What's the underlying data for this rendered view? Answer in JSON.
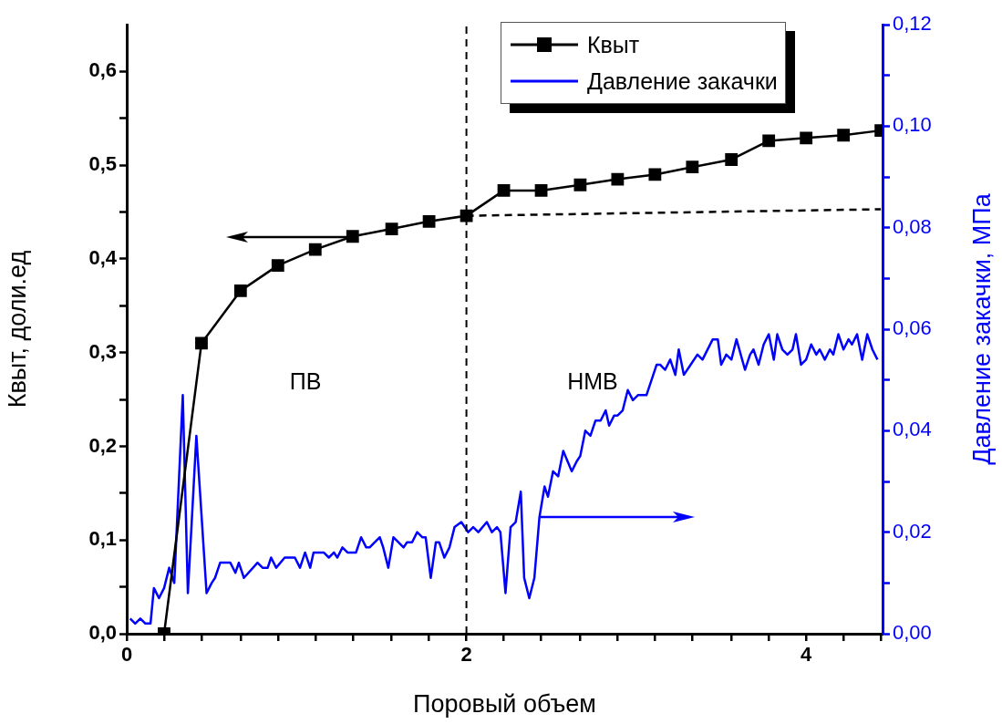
{
  "chart_data": {
    "type": "line",
    "xlabel": "Поровый объем",
    "ylabel": "Квыт, доли.ед",
    "y2label": "Давление закачки, МПа",
    "xlim": [
      0,
      4.45
    ],
    "xticks": [
      0,
      {
        "value": 0.22,
        "label": null
      },
      {
        "value": 0.44,
        "label": null
      },
      {
        "value": 0.67,
        "label": null
      },
      {
        "value": 0.89,
        "label": null
      },
      {
        "value": 1.11,
        "label": null
      },
      {
        "value": 1.33,
        "label": null
      },
      {
        "value": 1.56,
        "label": null
      },
      {
        "value": 1.78,
        "label": null
      },
      2,
      {
        "value": 2.22,
        "label": null
      },
      {
        "value": 2.44,
        "label": null
      },
      {
        "value": 2.67,
        "label": null
      },
      {
        "value": 2.89,
        "label": null
      },
      {
        "value": 3.11,
        "label": null
      },
      {
        "value": 3.33,
        "label": null
      },
      {
        "value": 3.56,
        "label": null
      },
      {
        "value": 3.78,
        "label": null
      },
      4,
      {
        "value": 4.22,
        "label": null
      },
      {
        "value": 4.44,
        "label": null
      }
    ],
    "ylim": [
      0,
      0.65
    ],
    "yticks": [
      {
        "value": 0,
        "label": "0,0"
      },
      {
        "value": 0.05,
        "label": null
      },
      {
        "value": 0.1,
        "label": "0,1"
      },
      {
        "value": 0.15,
        "label": null
      },
      {
        "value": 0.2,
        "label": "0,2"
      },
      {
        "value": 0.25,
        "label": null
      },
      {
        "value": 0.3,
        "label": "0,3"
      },
      {
        "value": 0.35,
        "label": null
      },
      {
        "value": 0.4,
        "label": "0,4"
      },
      {
        "value": 0.45,
        "label": null
      },
      {
        "value": 0.5,
        "label": "0,5"
      },
      {
        "value": 0.55,
        "label": null
      },
      {
        "value": 0.6,
        "label": "0,6"
      }
    ],
    "y2lim": [
      0,
      0.12
    ],
    "y2ticks": [
      {
        "value": 0,
        "label": "0,00"
      },
      {
        "value": 0.01,
        "label": null
      },
      {
        "value": 0.02,
        "label": "0,02"
      },
      {
        "value": 0.03,
        "label": null
      },
      {
        "value": 0.04,
        "label": "0,04"
      },
      {
        "value": 0.05,
        "label": null
      },
      {
        "value": 0.06,
        "label": "0,06"
      },
      {
        "value": 0.07,
        "label": null
      },
      {
        "value": 0.08,
        "label": "0,08"
      },
      {
        "value": 0.09,
        "label": null
      },
      {
        "value": 0.1,
        "label": "0,10"
      },
      {
        "value": 0.11,
        "label": null
      },
      {
        "value": 0.12,
        "label": "0,12"
      }
    ],
    "grid": false,
    "legend": "top",
    "line_style": "solid",
    "series": [
      {
        "name": "Квыт",
        "color": "#000000",
        "marker": "square",
        "x": [
          0.22,
          0.44,
          0.67,
          0.89,
          1.11,
          1.33,
          1.56,
          1.78,
          2.0,
          2.22,
          2.44,
          2.67,
          2.89,
          3.11,
          3.33,
          3.56,
          3.78,
          4.0,
          4.22,
          4.44
        ],
        "values": [
          0,
          0.31,
          0.366,
          0.393,
          0.41,
          0.424,
          0.432,
          0.44,
          0.446,
          0.473,
          0.473,
          0.479,
          0.485,
          0.49,
          0.498,
          0.506,
          0.526,
          0.529,
          0.532,
          0.537
        ]
      },
      {
        "name": "Давление закачки",
        "color": "#0000ff",
        "marker": "none",
        "axis": "y2",
        "x": [
          0.02,
          0.05,
          0.08,
          0.11,
          0.14,
          0.16,
          0.19,
          0.22,
          0.25,
          0.28,
          0.33,
          0.36,
          0.41,
          0.47,
          0.5,
          0.52,
          0.55,
          0.61,
          0.64,
          0.66,
          0.69,
          0.77,
          0.8,
          0.83,
          0.85,
          0.88,
          0.93,
          0.99,
          1.02,
          1.05,
          1.08,
          1.1,
          1.16,
          1.19,
          1.22,
          1.24,
          1.27,
          1.3,
          1.35,
          1.38,
          1.41,
          1.43,
          1.49,
          1.51,
          1.54,
          1.57,
          1.63,
          1.65,
          1.68,
          1.71,
          1.74,
          1.76,
          1.79,
          1.82,
          1.84,
          1.87,
          1.9,
          1.93,
          1.97,
          2.01,
          2.04,
          2.07,
          2.12,
          2.15,
          2.18,
          2.2,
          2.23,
          2.26,
          2.29,
          2.32,
          2.34,
          2.37,
          2.4,
          2.43,
          2.46,
          2.48,
          2.51,
          2.54,
          2.57,
          2.62,
          2.65,
          2.67,
          2.7,
          2.73,
          2.76,
          2.79,
          2.82,
          2.84,
          2.87,
          2.89,
          2.92,
          2.95,
          2.98,
          3.01,
          3.06,
          3.12,
          3.14,
          3.17,
          3.2,
          3.23,
          3.25,
          3.28,
          3.32,
          3.36,
          3.39,
          3.45,
          3.48,
          3.5,
          3.53,
          3.56,
          3.59,
          3.64,
          3.67,
          3.69,
          3.72,
          3.75,
          3.78,
          3.81,
          3.83,
          3.86,
          3.89,
          3.92,
          3.94,
          3.97,
          4.0,
          4.03,
          4.06,
          4.08,
          4.11,
          4.14,
          4.16,
          4.19,
          4.22,
          4.25,
          4.27,
          4.3,
          4.33,
          4.36,
          4.39,
          4.42
        ],
        "values": [
          0.003,
          0.002,
          0.003,
          0.002,
          0.002,
          0.009,
          0.007,
          0.009,
          0.013,
          0.01,
          0.047,
          0.008,
          0.039,
          0.008,
          0.01,
          0.011,
          0.014,
          0.014,
          0.012,
          0.014,
          0.011,
          0.014,
          0.013,
          0.013,
          0.015,
          0.013,
          0.015,
          0.015,
          0.013,
          0.016,
          0.013,
          0.016,
          0.016,
          0.015,
          0.016,
          0.015,
          0.017,
          0.016,
          0.016,
          0.019,
          0.017,
          0.017,
          0.019,
          0.017,
          0.013,
          0.019,
          0.017,
          0.018,
          0.018,
          0.02,
          0.019,
          0.019,
          0.011,
          0.018,
          0.018,
          0.015,
          0.017,
          0.021,
          0.022,
          0.02,
          0.021,
          0.02,
          0.022,
          0.02,
          0.021,
          0.02,
          0.008,
          0.021,
          0.022,
          0.028,
          0.011,
          0.007,
          0.011,
          0.023,
          0.029,
          0.027,
          0.032,
          0.031,
          0.036,
          0.032,
          0.034,
          0.035,
          0.04,
          0.039,
          0.042,
          0.042,
          0.044,
          0.041,
          0.043,
          0.043,
          0.044,
          0.048,
          0.046,
          0.047,
          0.047,
          0.053,
          0.053,
          0.052,
          0.054,
          0.051,
          0.056,
          0.051,
          0.053,
          0.055,
          0.054,
          0.058,
          0.058,
          0.053,
          0.055,
          0.054,
          0.058,
          0.052,
          0.055,
          0.056,
          0.053,
          0.057,
          0.059,
          0.054,
          0.059,
          0.056,
          0.055,
          0.056,
          0.059,
          0.053,
          0.054,
          0.057,
          0.055,
          0.056,
          0.054,
          0.056,
          0.055,
          0.059,
          0.056,
          0.058,
          0.057,
          0.059,
          0.054,
          0.059,
          0.056,
          0.054
        ]
      },
      {
        "color": "#000000",
        "marker": "none",
        "line_style": "dashed",
        "x": [
          2.0,
          4.44
        ],
        "values": [
          0.446,
          0.453
        ]
      }
    ],
    "ref_lines": [
      {
        "axis": "x",
        "value": 2,
        "color": "#000000",
        "line_style": "dashed"
      }
    ],
    "annotations": [
      "ПВ",
      "НМВ"
    ]
  }
}
